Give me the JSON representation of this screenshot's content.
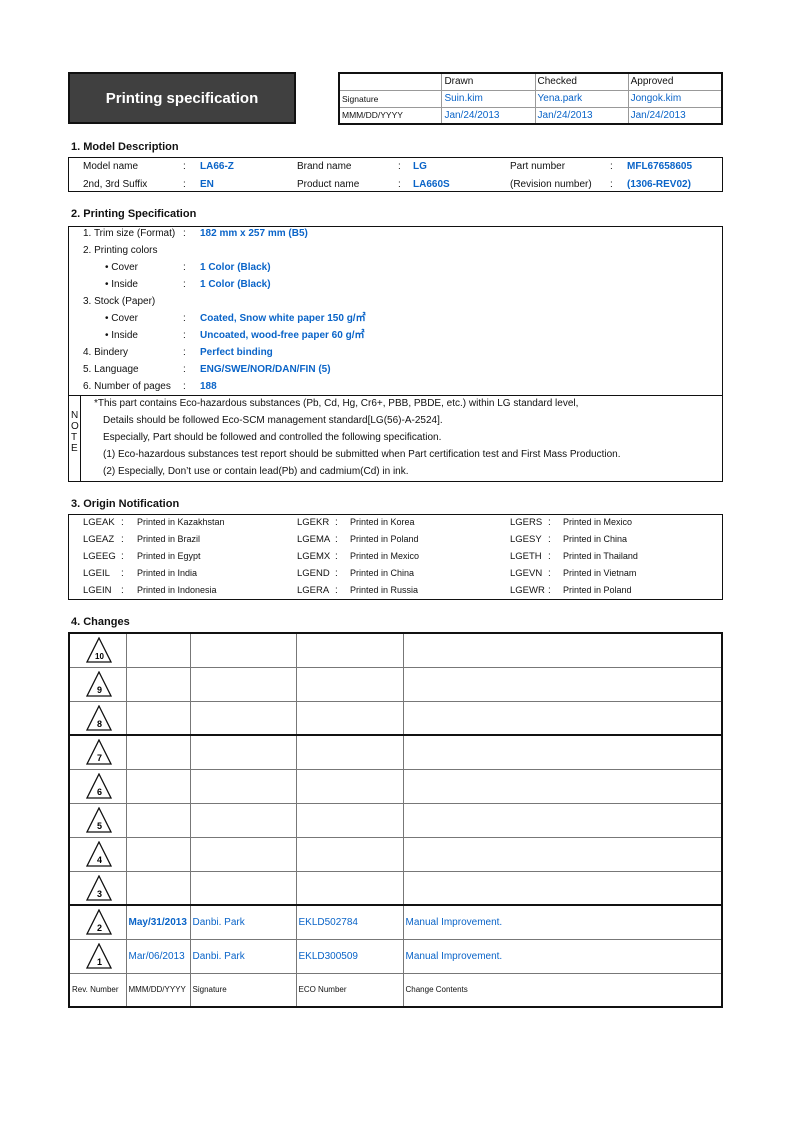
{
  "title": "Printing specification",
  "approval": {
    "headers": [
      "Drawn",
      "Checked",
      "Approved"
    ],
    "signature_label": "Signature",
    "date_label": "MMM/DD/YYYY",
    "signatures": [
      "Suin.kim",
      "Yena.park",
      "Jongok.kim"
    ],
    "dates": [
      "Jan/24/2013",
      "Jan/24/2013",
      "Jan/24/2013"
    ]
  },
  "model": {
    "heading": "1. Model Description",
    "rows": [
      [
        {
          "label": "Model name",
          "value": "LA66-Z"
        },
        {
          "label": "Brand name",
          "value": "LG"
        },
        {
          "label": "Part number",
          "value": "MFL67658605"
        }
      ],
      [
        {
          "label": "2nd, 3rd Suffix",
          "value": "EN"
        },
        {
          "label": "Product name",
          "value": "LA660S"
        },
        {
          "label": "(Revision number)",
          "value": "(1306-REV02)"
        }
      ]
    ]
  },
  "spec": {
    "heading": "2. Printing Specification",
    "items": [
      {
        "label": "1. Trim size (Format)",
        "value": "182 mm x 257 mm (B5)",
        "indent": false
      },
      {
        "label": "2. Printing colors",
        "value": null,
        "indent": false
      },
      {
        "label": "• Cover",
        "value": "1 Color (Black)",
        "indent": true
      },
      {
        "label": "• Inside",
        "value": "1 Color (Black)",
        "indent": true
      },
      {
        "label": "3. Stock (Paper)",
        "value": null,
        "indent": false
      },
      {
        "label": "• Cover",
        "value": "Coated, Snow white paper 150 g/㎡",
        "indent": true
      },
      {
        "label": "• Inside",
        "value": "Uncoated, wood-free paper 60 g/㎡",
        "indent": true
      },
      {
        "label": "4. Bindery",
        "value": "Perfect binding",
        "indent": false
      },
      {
        "label": "5. Language",
        "value": "ENG/SWE/NOR/DAN/FIN (5)",
        "indent": false
      },
      {
        "label": "6. Number of pages",
        "value": "188",
        "indent": false
      }
    ],
    "note_label": [
      "N",
      "O",
      "T",
      "E"
    ],
    "notes": [
      "*This part contains Eco-hazardous substances (Pb, Cd, Hg, Cr6+, PBB, PBDE, etc.) within LG standard level,",
      "Details should be followed Eco-SCM management standard[LG(56)-A-2524].",
      "Especially, Part should be followed and controlled the following specification.",
      "(1) Eco-hazardous substances test report should be submitted when Part certification test and First Mass Production.",
      "(2) Especially, Don’t use or contain lead(Pb) and cadmium(Cd) in ink."
    ]
  },
  "origin": {
    "heading": "3. Origin Notification",
    "rows": [
      [
        [
          "LGEAK",
          "Printed in Kazakhstan"
        ],
        [
          "LGEKR",
          "Printed in Korea"
        ],
        [
          "LGERS",
          "Printed in Mexico"
        ]
      ],
      [
        [
          "LGEAZ",
          "Printed in Brazil"
        ],
        [
          "LGEMA",
          "Printed in Poland"
        ],
        [
          "LGESY",
          "Printed in China"
        ]
      ],
      [
        [
          "LGEEG",
          "Printed in Egypt"
        ],
        [
          "LGEMX",
          "Printed in Mexico"
        ],
        [
          "LGETH",
          "Printed in Thailand"
        ]
      ],
      [
        [
          "LGEIL",
          "Printed in India"
        ],
        [
          "LGEND",
          "Printed in China"
        ],
        [
          "LGEVN",
          "Printed in Vietnam"
        ]
      ],
      [
        [
          "LGEIN",
          "Printed in Indonesia"
        ],
        [
          "LGERA",
          "Printed in Russia"
        ],
        [
          "LGEWR",
          "Printed in Poland"
        ]
      ]
    ]
  },
  "changes": {
    "heading": "4. Changes",
    "rows": [
      {
        "rev": "10",
        "date": "",
        "signature": "",
        "eco": "",
        "contents": ""
      },
      {
        "rev": "9",
        "date": "",
        "signature": "",
        "eco": "",
        "contents": ""
      },
      {
        "rev": "8",
        "date": "",
        "signature": "",
        "eco": "",
        "contents": ""
      },
      {
        "rev": "7",
        "date": "",
        "signature": "",
        "eco": "",
        "contents": ""
      },
      {
        "rev": "6",
        "date": "",
        "signature": "",
        "eco": "",
        "contents": ""
      },
      {
        "rev": "5",
        "date": "",
        "signature": "",
        "eco": "",
        "contents": ""
      },
      {
        "rev": "4",
        "date": "",
        "signature": "",
        "eco": "",
        "contents": ""
      },
      {
        "rev": "3",
        "date": "",
        "signature": "",
        "eco": "",
        "contents": ""
      },
      {
        "rev": "2",
        "date": "May/31/2013",
        "signature": "Danbi. Park",
        "eco": "EKLD502784",
        "contents": "Manual Improvement."
      },
      {
        "rev": "1",
        "date": "Mar/06/2013",
        "signature": "Danbi. Park",
        "eco": "EKLD300509",
        "contents": "Manual Improvement."
      }
    ],
    "footer": [
      "Rev. Number",
      "MMM/DD/YYYY",
      "Signature",
      "ECO Number",
      "Change Contents"
    ]
  },
  "colors": {
    "value_blue": "#0a64c8",
    "title_bg": "#404040"
  }
}
